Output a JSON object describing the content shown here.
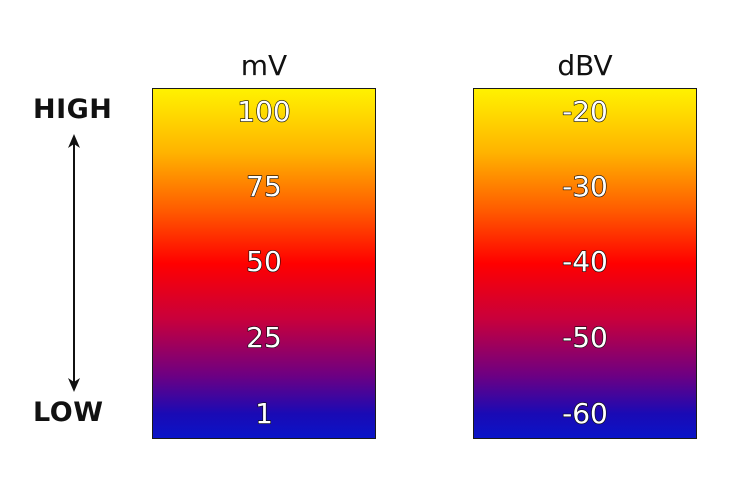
{
  "side_labels": {
    "high": "HIGH",
    "low": "LOW"
  },
  "scales": [
    {
      "unit": "mV",
      "ticks": [
        "100",
        "75",
        "50",
        "25",
        "1"
      ]
    },
    {
      "unit": "dBV",
      "ticks": [
        "-20",
        "-30",
        "-40",
        "-50",
        "-60"
      ]
    }
  ],
  "colors": {
    "top": "#fff200",
    "middle": "#ff0000",
    "bottom": "#0a14c8"
  }
}
